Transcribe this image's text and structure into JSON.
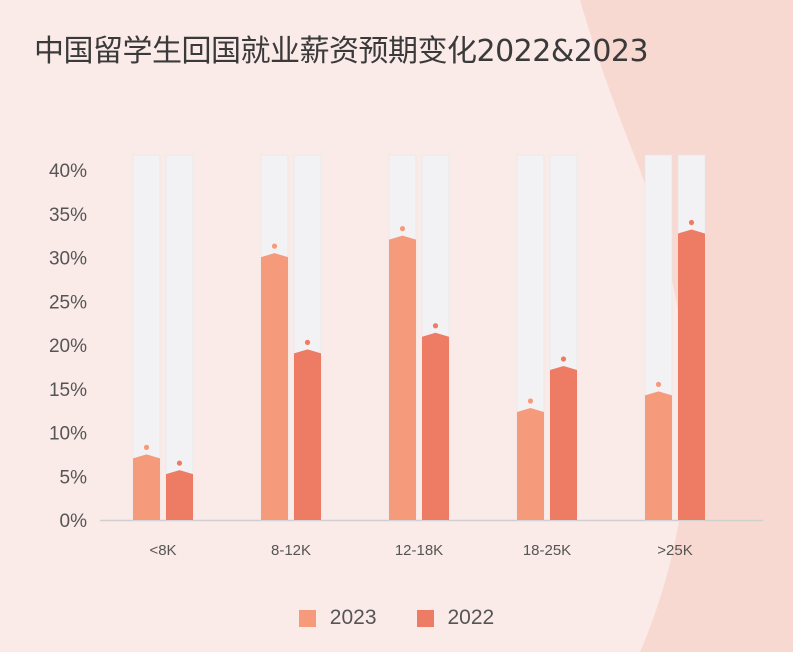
{
  "chart_data": {
    "type": "bar",
    "title": "中国留学生回国就业薪资预期变化2022&2023",
    "categories": [
      "<8K",
      "8-12K",
      "12-18K",
      "18-25K",
      ">25K"
    ],
    "series": [
      {
        "name": "2023",
        "values": [
          7.5,
          30.5,
          32.5,
          12.8,
          14.7
        ],
        "color": "#f59b7b"
      },
      {
        "name": "2022",
        "values": [
          5.7,
          19.5,
          21.4,
          17.6,
          33.2
        ],
        "color": "#ee7b63"
      }
    ],
    "ylim": [
      0,
      40
    ],
    "yticks": [
      "0%",
      "5%",
      "10%",
      "15%",
      "20%",
      "25%",
      "30%",
      "35%",
      "40%"
    ],
    "ytick_values": [
      0,
      5,
      10,
      15,
      20,
      25,
      30,
      35,
      40
    ],
    "legend": "bottom",
    "grid": false
  },
  "colors": {
    "background": "#fbebe8",
    "background_shape": "#f8d9d2",
    "track": "#f2f2f4",
    "axis": "#cfcfcf",
    "text": "#555555"
  }
}
